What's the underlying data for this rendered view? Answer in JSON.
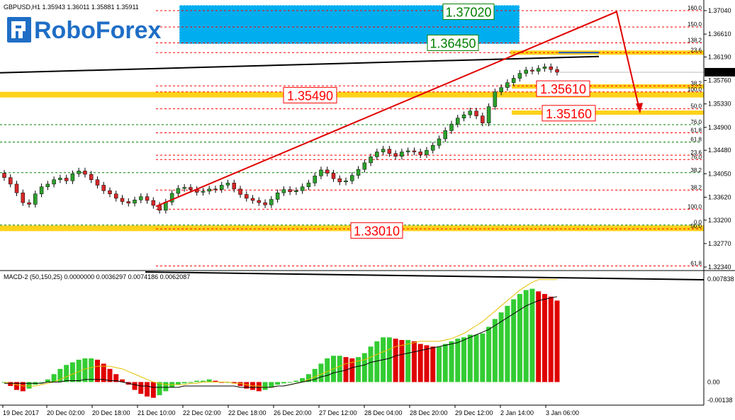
{
  "chart_data": {
    "type": "candlestick",
    "symbol_info": {
      "symbol": "GBPUSD,H1",
      "open": "1.35943",
      "high": "1.36011",
      "low": "1.35881",
      "close": "1.35911"
    },
    "price_axis": {
      "ylim": [
        1.3234,
        1.3704
      ],
      "ticks": [
        "1.37040",
        "1.36610",
        "1.36190",
        "1.35760",
        "1.35330",
        "1.34900",
        "1.34480",
        "1.34050",
        "1.33620",
        "1.33200",
        "1.32770",
        "1.32340"
      ],
      "current": "1.35911"
    },
    "x_ticks": [
      "19 Dec 2017",
      "20 Dec 02:00",
      "20 Dec 18:00",
      "21 Dec 10:00",
      "22 Dec 02:00",
      "22 Dec 18:00",
      "26 Dec 20:00",
      "27 Dec 12:00",
      "28 Dec 04:00",
      "28 Dec 20:00",
      "29 Dec 12:00",
      "2 Jan 14:00",
      "3 Jan 06:00"
    ],
    "candles_close": [
      1.3398,
      1.3386,
      1.337,
      1.3352,
      1.3349,
      1.3368,
      1.3381,
      1.3386,
      1.3394,
      1.3397,
      1.3392,
      1.3405,
      1.341,
      1.3404,
      1.3394,
      1.3384,
      1.3374,
      1.3368,
      1.336,
      1.3354,
      1.3351,
      1.3357,
      1.3363,
      1.3356,
      1.3347,
      1.3338,
      1.3353,
      1.3369,
      1.3378,
      1.338,
      1.3376,
      1.3371,
      1.3373,
      1.3377,
      1.3376,
      1.3384,
      1.3388,
      1.3377,
      1.3367,
      1.336,
      1.3356,
      1.3352,
      1.3348,
      1.3358,
      1.337,
      1.3376,
      1.3372,
      1.3374,
      1.3381,
      1.3388,
      1.3401,
      1.3412,
      1.3406,
      1.3396,
      1.339,
      1.3392,
      1.3402,
      1.3413,
      1.3425,
      1.3436,
      1.3445,
      1.345,
      1.3442,
      1.3437,
      1.3445,
      1.3447,
      1.3445,
      1.344,
      1.3448,
      1.3457,
      1.3469,
      1.3484,
      1.3496,
      1.3507,
      1.3513,
      1.352,
      1.3511,
      1.3498,
      1.3528,
      1.3555,
      1.3563,
      1.3572,
      1.358,
      1.3589,
      1.3595,
      1.3593,
      1.3598,
      1.3601,
      1.3596,
      1.3591
    ],
    "fib_levels": [
      {
        "label": "160.0",
        "price": 1.3704,
        "color": "#ff0000"
      },
      {
        "label": "150.0",
        "price": 1.3674,
        "color": "#ff0000"
      },
      {
        "label": "138.2",
        "price": 1.3645,
        "color": "#ff0000"
      },
      {
        "label": "23.6",
        "price": 1.3627,
        "color": "#ff0000"
      },
      {
        "label": "38.2",
        "price": 1.3566,
        "color": "#ff0000"
      },
      {
        "label": "100.0",
        "price": 1.3555,
        "color": "#ff0000"
      },
      {
        "label": "50.0",
        "price": 1.3524,
        "color": "#ff0000"
      },
      {
        "label": "76.0",
        "price": 1.3495,
        "color": "#008000"
      },
      {
        "label": "61.8",
        "price": 1.348,
        "color": "#ff0000"
      },
      {
        "label": "61.8",
        "price": 1.3463,
        "color": "#008000"
      },
      {
        "label": "23.6",
        "price": 1.3439,
        "color": "#ff0000"
      },
      {
        "label": "76.0",
        "price": 1.3431,
        "color": "#ff0000"
      },
      {
        "label": "38.2",
        "price": 1.3407,
        "color": "#008000"
      },
      {
        "label": "38.2",
        "price": 1.3375,
        "color": "#ff0000"
      },
      {
        "label": "100.0",
        "price": 1.334,
        "color": "#ff0000"
      },
      {
        "label": "0.0",
        "price": 1.3311,
        "color": "#008000"
      },
      {
        "label": "50.0",
        "price": 1.3304,
        "color": "#ff0000"
      },
      {
        "label": "61.8",
        "price": 1.3236,
        "color": "#ff0000"
      }
    ],
    "target_labels": [
      {
        "text": "1.37020",
        "price": 1.3702,
        "color": "#008000"
      },
      {
        "text": "1.36450",
        "price": 1.3645,
        "color": "#008000"
      },
      {
        "text": "1.35490",
        "price": 1.3549,
        "color": "#ff0000"
      },
      {
        "text": "1.35610",
        "price": 1.3561,
        "color": "#ff0000"
      },
      {
        "text": "1.35160",
        "price": 1.3516,
        "color": "#ff0000"
      },
      {
        "text": "1.33010",
        "price": 1.3301,
        "color": "#ff0000"
      }
    ],
    "forecast": {
      "from": {
        "x_index": 34,
        "price": 1.3345
      },
      "peak": {
        "x_index": 138,
        "price": 1.3702
      },
      "to": {
        "x_index": 142,
        "price": 1.3518
      }
    },
    "macd": {
      "title": "MACD-2 (50,150,25) 0.0000000 0.0036297 0.0074186 0.0062087",
      "ticks": [
        "0.007838",
        "0.00",
        "-0.00138"
      ],
      "ylim": [
        -0.00138,
        0.007838
      ],
      "histogram": [
        0.0,
        -0.0003,
        -0.0006,
        -0.0007,
        -0.0005,
        -0.0002,
        0.0,
        0.0002,
        0.0006,
        0.001,
        0.0013,
        0.0015,
        0.0017,
        0.0018,
        0.0018,
        0.0017,
        0.0014,
        0.001,
        0.0006,
        0.0002,
        -0.0002,
        -0.0006,
        -0.0009,
        -0.0011,
        -0.0012,
        -0.001,
        -0.0007,
        -0.0004,
        -0.0002,
        -0.0001,
        0.0,
        0.0001,
        0.0001,
        0.0002,
        0.0001,
        0.0,
        0.0,
        -0.0001,
        -0.0003,
        -0.0005,
        -0.0006,
        -0.0007,
        -0.0006,
        -0.0004,
        -0.0002,
        -0.0001,
        0.0,
        0.0001,
        0.0003,
        0.0006,
        0.001,
        0.0014,
        0.0018,
        0.002,
        0.002,
        0.0019,
        0.0018,
        0.0019,
        0.0022,
        0.0027,
        0.0031,
        0.0034,
        0.0034,
        0.0033,
        0.0032,
        0.0032,
        0.0031,
        0.0029,
        0.0028,
        0.0027,
        0.0027,
        0.0029,
        0.0031,
        0.0033,
        0.0034,
        0.0036,
        0.0036,
        0.0037,
        0.0042,
        0.0048,
        0.0053,
        0.0058,
        0.0063,
        0.0067,
        0.007,
        0.0071,
        0.0069,
        0.0067,
        0.0065,
        0.0062
      ],
      "signal": [
        0.0,
        -0.0001,
        -0.0002,
        -0.0003,
        -0.0003,
        -0.0003,
        -0.0002,
        -0.0001,
        0.0,
        0.0002,
        0.0004,
        0.0006,
        0.0008,
        0.001,
        0.0011,
        0.0012,
        0.0012,
        0.0012,
        0.0011,
        0.001,
        0.0008,
        0.0006,
        0.0004,
        0.0002,
        0.0,
        -0.0001,
        -0.0002,
        -0.0002,
        -0.0002,
        -0.0002,
        -0.0001,
        -0.0001,
        0.0,
        0.0,
        0.0,
        0.0,
        0.0,
        -0.0001,
        -0.0001,
        -0.0002,
        -0.0003,
        -0.0003,
        -0.0004,
        -0.0004,
        -0.0003,
        -0.0003,
        -0.0002,
        -0.0001,
        0.0,
        0.0002,
        0.0004,
        0.0006,
        0.0008,
        0.001,
        0.0012,
        0.0014,
        0.0015,
        0.0016,
        0.0017,
        0.0019,
        0.0021,
        0.0023,
        0.0025,
        0.0027,
        0.0028,
        0.0029,
        0.003,
        0.0031,
        0.0031,
        0.0031,
        0.0031,
        0.0032,
        0.0033,
        0.0035,
        0.0037,
        0.004,
        0.0043,
        0.0046,
        0.005,
        0.0054,
        0.0058,
        0.0062,
        0.0066,
        0.007,
        0.0073,
        0.0076,
        0.0078,
        0.0078,
        0.0078,
        0.0078
      ],
      "line": [
        -0.0001,
        -0.0001,
        -0.0001,
        -0.0001,
        -0.0001,
        -0.0001,
        -0.0001,
        0.0,
        0.0,
        0.0,
        0.0001,
        0.0001,
        0.0001,
        0.0002,
        0.0002,
        0.0002,
        0.0002,
        0.0001,
        0.0001,
        0.0,
        -0.0001,
        -0.0002,
        -0.0003,
        -0.0003,
        -0.0004,
        -0.0004,
        -0.0004,
        -0.0004,
        -0.0004,
        -0.0003,
        -0.0003,
        -0.0003,
        -0.0003,
        -0.0003,
        -0.0003,
        -0.0003,
        -0.0003,
        -0.0003,
        -0.0004,
        -0.0004,
        -0.0004,
        -0.0004,
        -0.0004,
        -0.0004,
        -0.0003,
        -0.0003,
        -0.0002,
        -0.0001,
        0.0,
        0.0001,
        0.0002,
        0.0004,
        0.0005,
        0.0007,
        0.0008,
        0.0009,
        0.0011,
        0.0012,
        0.0013,
        0.0015,
        0.0016,
        0.0017,
        0.0018,
        0.002,
        0.0021,
        0.0022,
        0.0023,
        0.0024,
        0.0025,
        0.0026,
        0.0027,
        0.0028,
        0.0029,
        0.003,
        0.0032,
        0.0034,
        0.0036,
        0.0038,
        0.004,
        0.0043,
        0.0046,
        0.0049,
        0.0052,
        0.0055,
        0.0058,
        0.006,
        0.0062,
        0.0063,
        0.0064,
        0.0065
      ]
    }
  },
  "logo": {
    "text": "RoboForex"
  }
}
